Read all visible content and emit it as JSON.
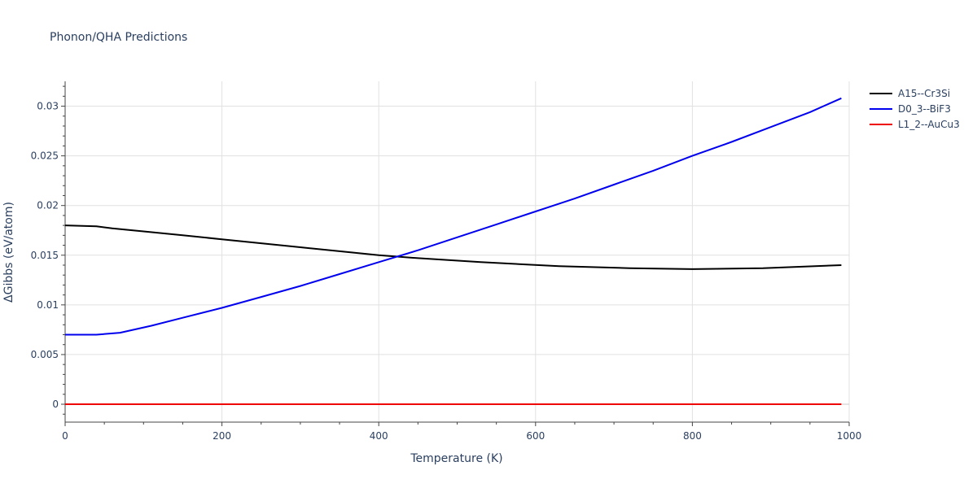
{
  "chart_data": {
    "type": "line",
    "title": "Phonon/QHA Predictions",
    "xlabel": "Temperature (K)",
    "ylabel": "ΔGibbs (eV/atom)",
    "xlim": [
      0,
      1000
    ],
    "ylim": [
      -0.0018,
      0.0325
    ],
    "xticks": [
      0,
      200,
      400,
      600,
      800,
      1000
    ],
    "xtick_labels": [
      "0",
      "200",
      "400",
      "600",
      "800",
      "1000"
    ],
    "yticks": [
      0,
      0.005,
      0.01,
      0.015,
      0.02,
      0.025,
      0.03
    ],
    "ytick_labels": [
      "0",
      "0.005",
      "0.01",
      "0.015",
      "0.02",
      "0.025",
      "0.03"
    ],
    "grid": true,
    "legend_position": "top-right",
    "series": [
      {
        "name": "A15--Cr3Si",
        "color": "#000000",
        "x": [
          0,
          40,
          60,
          100,
          150,
          200,
          250,
          300,
          350,
          400,
          450,
          530,
          630,
          720,
          800,
          890,
          990
        ],
        "y": [
          0.018,
          0.0179,
          0.0177,
          0.0174,
          0.017,
          0.0166,
          0.0162,
          0.0158,
          0.0154,
          0.015,
          0.0147,
          0.0143,
          0.0139,
          0.0137,
          0.0136,
          0.0137,
          0.014
        ]
      },
      {
        "name": "D0_3--BiF3",
        "color": "#0000ee",
        "x": [
          0,
          40,
          70,
          110,
          150,
          200,
          250,
          300,
          350,
          400,
          450,
          500,
          550,
          600,
          650,
          700,
          750,
          800,
          850,
          900,
          950,
          990
        ],
        "y": [
          0.007,
          0.007,
          0.0072,
          0.0079,
          0.0087,
          0.0097,
          0.0108,
          0.0119,
          0.0131,
          0.0143,
          0.0155,
          0.0168,
          0.0181,
          0.0194,
          0.0207,
          0.0221,
          0.0235,
          0.025,
          0.0264,
          0.0279,
          0.0294,
          0.0308
        ]
      },
      {
        "name": "L1_2--AuCu3",
        "color": "#ee0000",
        "x": [
          0,
          990
        ],
        "y": [
          0,
          0
        ]
      }
    ]
  }
}
